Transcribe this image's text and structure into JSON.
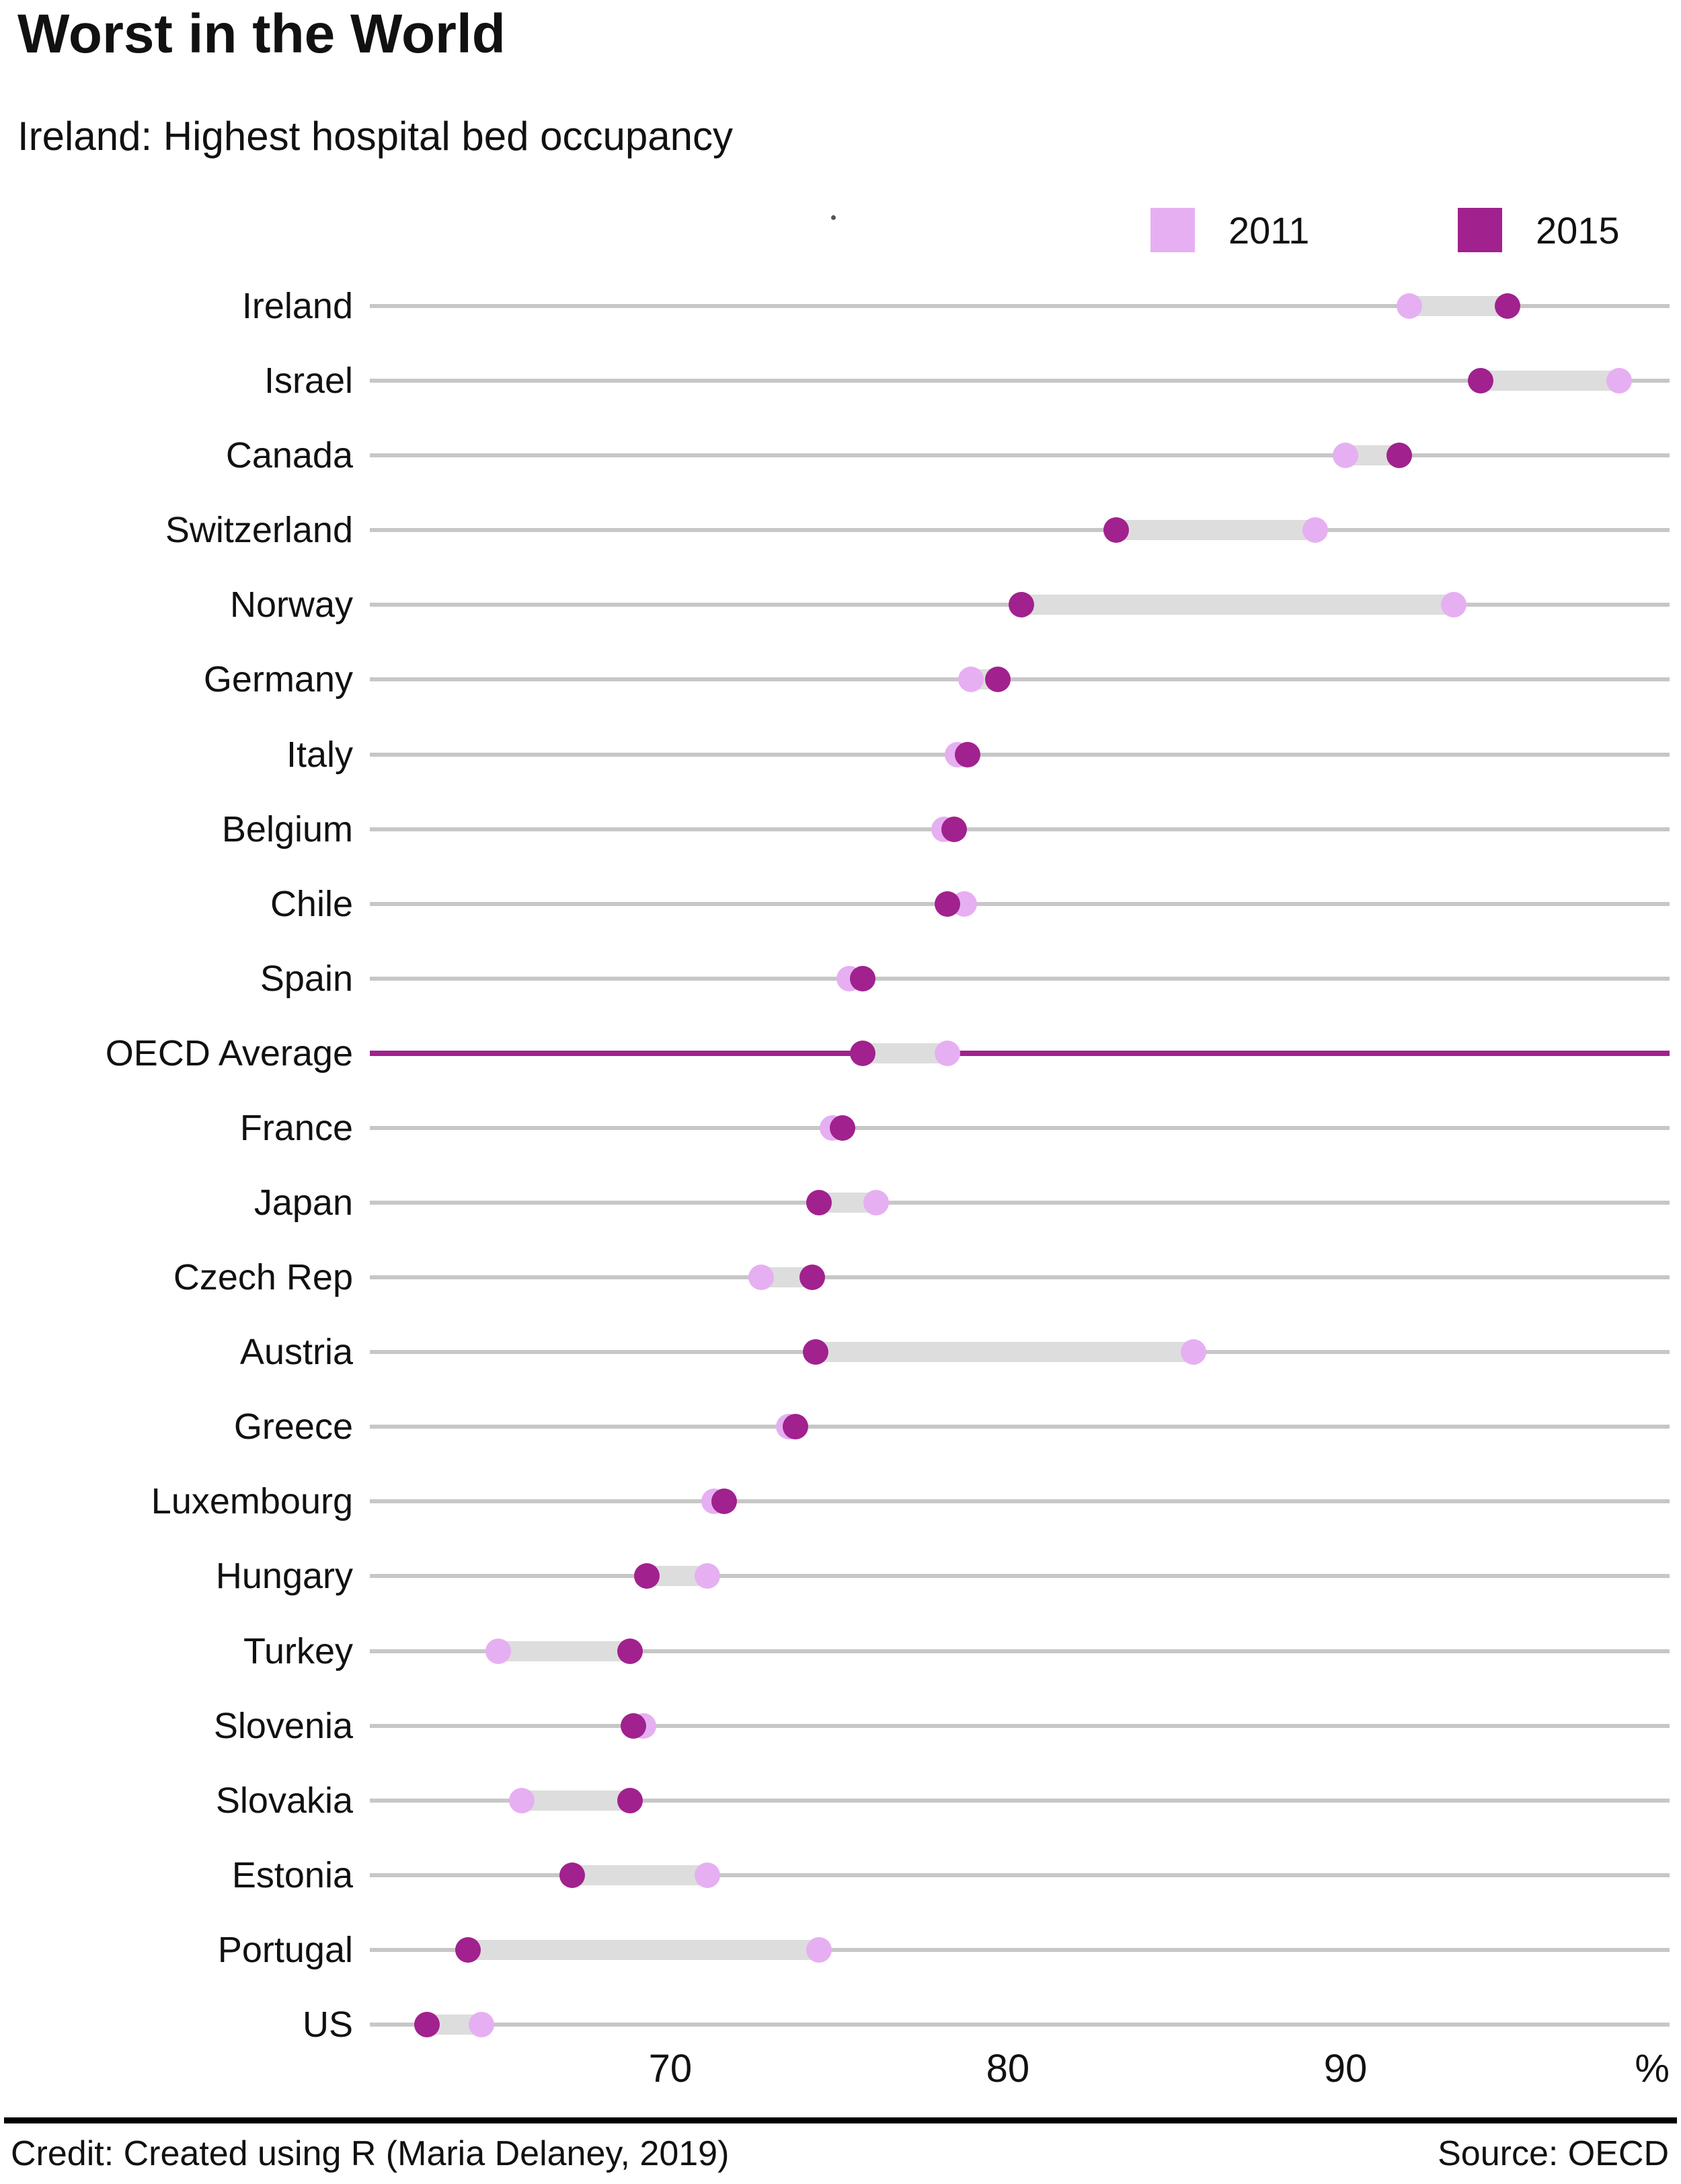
{
  "header": {
    "title": "Worst in the World",
    "subtitle": "Ireland: Highest hospital bed occupancy"
  },
  "legend": {
    "items": [
      {
        "label": "2011",
        "color": "#e6aff2"
      },
      {
        "label": "2015",
        "color": "#a1218e"
      }
    ]
  },
  "colors": {
    "dot_2011": "#e6aff2",
    "dot_2015": "#a1218e",
    "connector": "#dddddd",
    "row_line": "#c7c7c7",
    "oecd_reference_line": "#a1218e"
  },
  "footer": {
    "credit": "Credit: Created using R (Maria Delaney, 2019)",
    "source": "Source: OECD"
  },
  "chart_data": {
    "type": "dumbbell",
    "title": "Worst in the World",
    "subtitle": "Ireland: Highest hospital bed occupancy",
    "xlabel_unit": "%",
    "axis": {
      "xmin": 61.1,
      "xmax": 99.6,
      "ticks": [
        70,
        80,
        90
      ],
      "unit": "%"
    },
    "series_names": [
      "2011",
      "2015"
    ],
    "categories": [
      "Ireland",
      "Israel",
      "Canada",
      "Switzerland",
      "Norway",
      "Germany",
      "Italy",
      "Belgium",
      "Chile",
      "Spain",
      "OECD Average",
      "France",
      "Japan",
      "Czech Rep",
      "Austria",
      "Greece",
      "Luxembourg",
      "Hungary",
      "Turkey",
      "Slovenia",
      "Slovakia",
      "Estonia",
      "Portugal",
      "US"
    ],
    "rows": [
      {
        "label": "Ireland",
        "y2011": 91.9,
        "y2015": 94.8,
        "highlight": false
      },
      {
        "label": "Israel",
        "y2011": 98.1,
        "y2015": 94.0,
        "highlight": false
      },
      {
        "label": "Canada",
        "y2011": 90.0,
        "y2015": 91.6,
        "highlight": false
      },
      {
        "label": "Switzerland",
        "y2011": 89.1,
        "y2015": 83.2,
        "highlight": false
      },
      {
        "label": "Norway",
        "y2011": 93.2,
        "y2015": 80.4,
        "highlight": false
      },
      {
        "label": "Germany",
        "y2011": 78.9,
        "y2015": 79.7,
        "highlight": false
      },
      {
        "label": "Italy",
        "y2011": 78.5,
        "y2015": 78.8,
        "highlight": false
      },
      {
        "label": "Belgium",
        "y2011": 78.1,
        "y2015": 78.4,
        "highlight": false
      },
      {
        "label": "Chile",
        "y2011": 78.7,
        "y2015": 78.2,
        "highlight": false
      },
      {
        "label": "Spain",
        "y2011": 75.3,
        "y2015": 75.7,
        "highlight": false
      },
      {
        "label": "OECD Average",
        "y2011": 78.2,
        "y2015": 75.7,
        "highlight": true
      },
      {
        "label": "France",
        "y2011": 74.8,
        "y2015": 75.1,
        "highlight": false
      },
      {
        "label": "Japan",
        "y2011": 76.1,
        "y2015": 74.4,
        "highlight": false
      },
      {
        "label": "Czech Rep",
        "y2011": 72.7,
        "y2015": 74.2,
        "highlight": false
      },
      {
        "label": "Austria",
        "y2011": 85.5,
        "y2015": 74.3,
        "highlight": false
      },
      {
        "label": "Greece",
        "y2011": 73.5,
        "y2015": 73.7,
        "highlight": false
      },
      {
        "label": "Luxembourg",
        "y2011": 71.3,
        "y2015": 71.6,
        "highlight": false
      },
      {
        "label": "Hungary",
        "y2011": 71.1,
        "y2015": 69.3,
        "highlight": false
      },
      {
        "label": "Turkey",
        "y2011": 64.9,
        "y2015": 68.8,
        "highlight": false
      },
      {
        "label": "Slovenia",
        "y2011": 69.2,
        "y2015": 68.9,
        "highlight": false
      },
      {
        "label": "Slovakia",
        "y2011": 65.6,
        "y2015": 68.8,
        "highlight": false
      },
      {
        "label": "Estonia",
        "y2011": 71.1,
        "y2015": 67.1,
        "highlight": false
      },
      {
        "label": "Portugal",
        "y2011": 74.4,
        "y2015": 64.0,
        "highlight": false
      },
      {
        "label": "US",
        "y2011": 64.4,
        "y2015": 62.8,
        "highlight": false
      }
    ],
    "legend_position": "top-right",
    "grid": false
  }
}
